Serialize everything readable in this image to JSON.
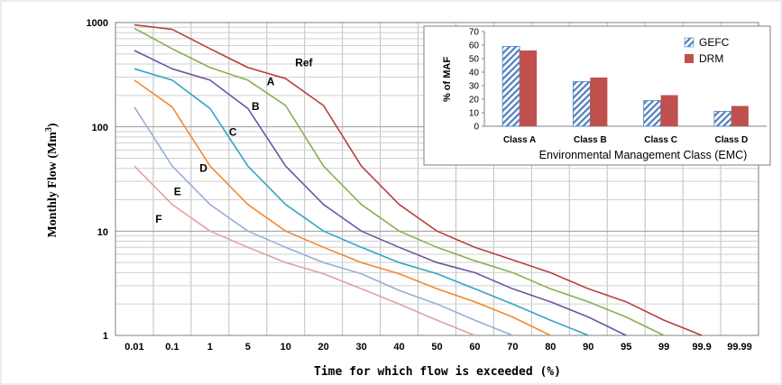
{
  "chart_data": [
    {
      "type": "line",
      "x_axis_label": "Time for which flow is exceeded (%)",
      "y_axis_label": "Monthly Flow (Mm",
      "y_axis_label_sup": "3",
      "y_axis_label_end": ")",
      "y_scale": "log",
      "ylim": [
        1,
        1000
      ],
      "y_ticks": [
        "1000",
        "100",
        "10",
        "1"
      ],
      "x_scale": "normal probability (exceedance)",
      "x_ticks": [
        "0.01",
        "0.1",
        "1",
        "5",
        "10",
        "20",
        "30",
        "40",
        "50",
        "60",
        "70",
        "80",
        "90",
        "95",
        "99",
        "99.9",
        "99.99"
      ],
      "grid": true,
      "series": [
        {
          "name": "Ref",
          "color": "#b5413f",
          "label_at": {
            "x": 12.5,
            "y": 380
          },
          "points": [
            [
              0.01,
              950
            ],
            [
              0.1,
              860
            ],
            [
              1,
              560
            ],
            [
              5,
              370
            ],
            [
              10,
              290
            ],
            [
              20,
              160
            ],
            [
              30,
              42
            ],
            [
              40,
              18
            ],
            [
              50,
              10
            ],
            [
              60,
              7
            ],
            [
              70,
              5.3
            ],
            [
              80,
              4
            ],
            [
              90,
              2.8
            ],
            [
              95,
              2.1
            ],
            [
              99,
              1.4
            ],
            [
              99.9,
              1
            ]
          ]
        },
        {
          "name": "A",
          "color": "#89b050",
          "label_at": {
            "x": 7.5,
            "y": 250
          },
          "points": [
            [
              0.01,
              880
            ],
            [
              0.1,
              560
            ],
            [
              1,
              370
            ],
            [
              5,
              280
            ],
            [
              10,
              160
            ],
            [
              20,
              42
            ],
            [
              30,
              18
            ],
            [
              40,
              10
            ],
            [
              50,
              7
            ],
            [
              60,
              5.2
            ],
            [
              70,
              4
            ],
            [
              80,
              2.8
            ],
            [
              90,
              2.1
            ],
            [
              95,
              1.5
            ],
            [
              99,
              1
            ]
          ]
        },
        {
          "name": "B",
          "color": "#6e55a0",
          "label_at": {
            "x": 5.5,
            "y": 145
          },
          "points": [
            [
              0.01,
              540
            ],
            [
              0.1,
              360
            ],
            [
              1,
              280
            ],
            [
              5,
              150
            ],
            [
              10,
              42
            ],
            [
              20,
              18
            ],
            [
              30,
              10
            ],
            [
              40,
              7
            ],
            [
              50,
              5
            ],
            [
              60,
              4
            ],
            [
              70,
              2.8
            ],
            [
              80,
              2.1
            ],
            [
              90,
              1.5
            ],
            [
              95,
              1
            ]
          ]
        },
        {
          "name": "C",
          "color": "#35a3c6",
          "label_at": {
            "x": 3,
            "y": 82
          },
          "points": [
            [
              0.01,
              360
            ],
            [
              0.1,
              280
            ],
            [
              1,
              150
            ],
            [
              5,
              42
            ],
            [
              10,
              18
            ],
            [
              20,
              10
            ],
            [
              30,
              7
            ],
            [
              40,
              5
            ],
            [
              50,
              3.9
            ],
            [
              60,
              2.8
            ],
            [
              70,
              2
            ],
            [
              80,
              1.4
            ],
            [
              90,
              1
            ]
          ]
        },
        {
          "name": "D",
          "color": "#ee8a35",
          "label_at": {
            "x": 0.75,
            "y": 37
          },
          "points": [
            [
              0.01,
              280
            ],
            [
              0.1,
              155
            ],
            [
              1,
              42
            ],
            [
              5,
              18
            ],
            [
              10,
              10
            ],
            [
              20,
              7
            ],
            [
              30,
              5
            ],
            [
              40,
              3.9
            ],
            [
              50,
              2.8
            ],
            [
              60,
              2.1
            ],
            [
              70,
              1.5
            ],
            [
              80,
              1
            ]
          ]
        },
        {
          "name": "E",
          "color": "#96afd6",
          "label_at": {
            "x": 0.14,
            "y": 22
          },
          "points": [
            [
              0.01,
              155
            ],
            [
              0.1,
              42
            ],
            [
              1,
              18
            ],
            [
              5,
              10
            ],
            [
              10,
              7
            ],
            [
              20,
              5
            ],
            [
              30,
              3.9
            ],
            [
              40,
              2.7
            ],
            [
              50,
              2
            ],
            [
              60,
              1.4
            ],
            [
              70,
              1
            ]
          ]
        },
        {
          "name": "F",
          "color": "#e2a1a2",
          "label_at": {
            "x": 0.06,
            "y": 12
          },
          "points": [
            [
              0.01,
              42
            ],
            [
              0.1,
              18
            ],
            [
              1,
              10
            ],
            [
              5,
              7
            ],
            [
              10,
              5
            ],
            [
              20,
              3.9
            ],
            [
              30,
              2.8
            ],
            [
              40,
              2
            ],
            [
              50,
              1.4
            ],
            [
              60,
              1
            ]
          ]
        }
      ]
    },
    {
      "type": "bar",
      "x_axis_label": "Environmental Management Class (EMC)",
      "y_axis_label": "% of MAF",
      "ylim": [
        0,
        70
      ],
      "y_ticks": [
        "0",
        "10",
        "20",
        "30",
        "40",
        "50",
        "60",
        "70"
      ],
      "categories": [
        "Class A",
        "Class B",
        "Class C",
        "Class D"
      ],
      "legend_position": "top-right",
      "series": [
        {
          "name": "GEFC",
          "pattern": "diagonal-hatch",
          "color": "#4f7fc0",
          "values": [
            59,
            33,
            19,
            11
          ]
        },
        {
          "name": "DRM",
          "color": "#c0504d",
          "values": [
            56,
            36,
            23,
            15
          ]
        }
      ]
    }
  ]
}
